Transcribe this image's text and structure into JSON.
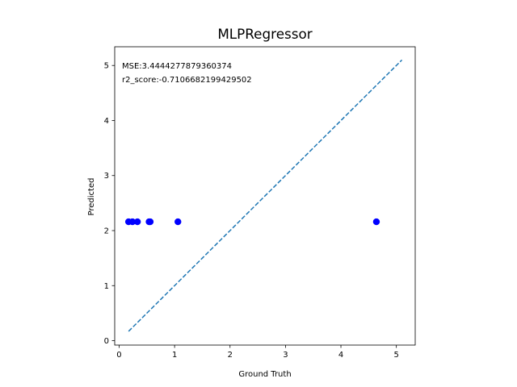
{
  "chart_data": {
    "type": "scatter",
    "title": "MLPRegressor",
    "xlabel": "Ground Truth",
    "ylabel": "Predicted",
    "xlim": [
      -0.08,
      5.34
    ],
    "ylim": [
      -0.08,
      5.34
    ],
    "xticks": [
      0,
      1,
      2,
      3,
      4,
      5
    ],
    "yticks": [
      0,
      1,
      2,
      3,
      4,
      5
    ],
    "annotations": [
      "MSE:3.4444277879360374",
      "r2_score:-0.7106682199429502"
    ],
    "points": {
      "x": [
        0.17,
        0.24,
        0.33,
        0.54,
        0.56,
        1.06,
        4.64
      ],
      "y": [
        2.16,
        2.16,
        2.16,
        2.16,
        2.16,
        2.16,
        2.16
      ],
      "color": "#0000ff"
    },
    "reference_line": {
      "x": [
        0.17,
        5.1
      ],
      "y": [
        0.17,
        5.1
      ],
      "style": "dashed",
      "color": "#1f77b4"
    },
    "grid": false
  }
}
